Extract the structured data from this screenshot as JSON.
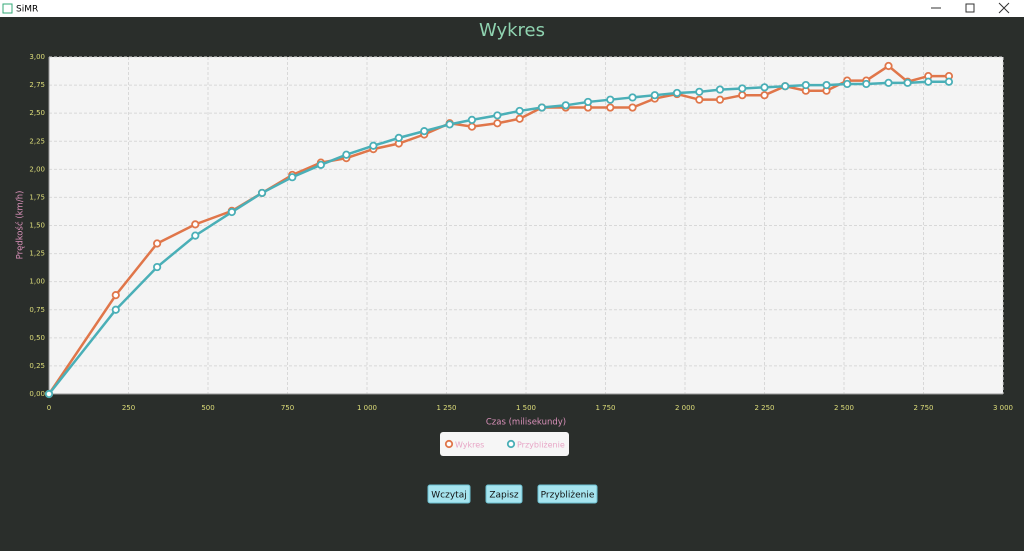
{
  "window": {
    "title": "SiMR"
  },
  "chart_data": {
    "type": "line",
    "title": "Wykres",
    "x_label": "Czas (milisekundy)",
    "y_label": "Prędkość (km/h)",
    "x": [
      0,
      210,
      340,
      460,
      575,
      670,
      765,
      855,
      935,
      1020,
      1100,
      1180,
      1260,
      1330,
      1410,
      1480,
      1550,
      1625,
      1695,
      1765,
      1835,
      1905,
      1975,
      2045,
      2110,
      2180,
      2250,
      2315,
      2380,
      2445,
      2510,
      2570,
      2640,
      2700,
      2765,
      2830
    ],
    "series": [
      {
        "name": "Wykres",
        "color": "#e0764a",
        "values": [
          0,
          0.88,
          1.34,
          1.51,
          1.63,
          1.79,
          1.95,
          2.06,
          2.1,
          2.18,
          2.23,
          2.31,
          2.41,
          2.38,
          2.41,
          2.45,
          2.55,
          2.55,
          2.55,
          2.55,
          2.55,
          2.63,
          2.67,
          2.62,
          2.62,
          2.66,
          2.66,
          2.74,
          2.7,
          2.7,
          2.79,
          2.79,
          2.92,
          2.78,
          2.83,
          2.83
        ]
      },
      {
        "name": "Przybliżenie",
        "color": "#4aafb7",
        "values": [
          0,
          0.75,
          1.13,
          1.41,
          1.62,
          1.79,
          1.93,
          2.04,
          2.13,
          2.21,
          2.28,
          2.34,
          2.4,
          2.44,
          2.48,
          2.52,
          2.55,
          2.57,
          2.6,
          2.62,
          2.64,
          2.66,
          2.68,
          2.69,
          2.71,
          2.72,
          2.73,
          2.74,
          2.75,
          2.75,
          2.76,
          2.76,
          2.77,
          2.77,
          2.78,
          2.78
        ]
      }
    ],
    "xlim": [
      0,
      3000
    ],
    "xticks": [
      0,
      250,
      500,
      750,
      {
        "value": 1000,
        "label": "1 000"
      },
      {
        "value": 1250,
        "label": "1 250"
      },
      {
        "value": 1500,
        "label": "1 500"
      },
      {
        "value": 1750,
        "label": "1 750"
      },
      {
        "value": 2000,
        "label": "2 000"
      },
      {
        "value": 2250,
        "label": "2 250"
      },
      {
        "value": 2500,
        "label": "2 500"
      },
      {
        "value": 2750,
        "label": "2 750"
      },
      {
        "value": 3000,
        "label": "3 000"
      }
    ],
    "ylim": [
      0,
      3
    ],
    "yticks": [
      {
        "value": 0,
        "label": "0,00"
      },
      {
        "value": 0.25,
        "label": "0,25"
      },
      {
        "value": 0.5,
        "label": "0,50"
      },
      {
        "value": 0.75,
        "label": "0,75"
      },
      {
        "value": 1,
        "label": "1,00"
      },
      {
        "value": 1.25,
        "label": "1,25"
      },
      {
        "value": 1.5,
        "label": "1,50"
      },
      {
        "value": 1.75,
        "label": "1,75"
      },
      {
        "value": 2,
        "label": "2,00"
      },
      {
        "value": 2.25,
        "label": "2,25"
      },
      {
        "value": 2.5,
        "label": "2,50"
      },
      {
        "value": 2.75,
        "label": "2,75"
      },
      {
        "value": 3,
        "label": "3,00"
      }
    ],
    "grid": true,
    "legend": "bottom"
  },
  "buttons": [
    "Wczytaj",
    "Zapisz",
    "Przybliżenie"
  ]
}
